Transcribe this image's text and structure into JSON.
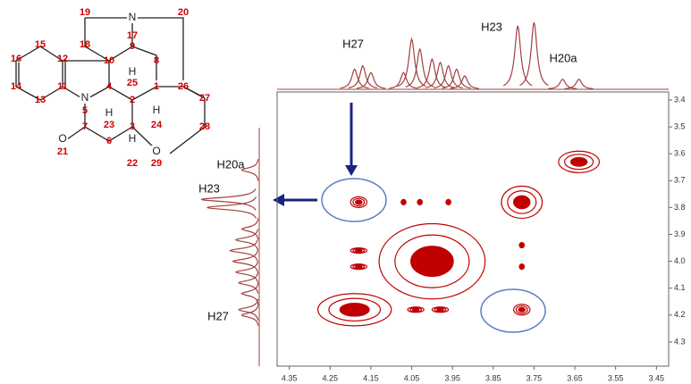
{
  "molecule": {
    "atoms": [
      "19",
      "17",
      "20",
      "15",
      "18",
      "9",
      "16",
      "12",
      "10",
      "8",
      "14",
      "11",
      "4",
      "25",
      "2",
      "1",
      "26",
      "27",
      "13",
      "5",
      "23",
      "24",
      "7",
      "6",
      "3",
      "28",
      "21",
      "22",
      "29"
    ],
    "heteroatoms": [
      "N",
      "N",
      "O",
      "O"
    ],
    "hydrogens": [
      "H",
      "H",
      "H",
      "H"
    ]
  },
  "spectrum": {
    "xlim": [
      4.38,
      3.42
    ],
    "ylim": [
      3.37,
      4.39
    ],
    "xticks": [
      4.35,
      4.25,
      4.15,
      4.05,
      3.95,
      3.85,
      3.75,
      3.65,
      3.55,
      3.45
    ],
    "yticks": [
      3.4,
      3.5,
      3.6,
      3.7,
      3.8,
      3.9,
      {
        "value": 4,
        "label": "4.0"
      },
      4.1,
      4.2,
      4.3
    ],
    "color": "#c00000",
    "top_labels": [
      "H27",
      "H23",
      "H20a"
    ],
    "left_labels": [
      "H20a",
      "H23",
      "H27"
    ],
    "top_projection": [
      {
        "x": 4.19,
        "h": 0.3
      },
      {
        "x": 4.17,
        "h": 0.35
      },
      {
        "x": 4.15,
        "h": 0.25
      },
      {
        "x": 4.07,
        "h": 0.25
      },
      {
        "x": 4.05,
        "h": 0.75
      },
      {
        "x": 4.03,
        "h": 0.6
      },
      {
        "x": 4.0,
        "h": 0.45
      },
      {
        "x": 3.98,
        "h": 0.4
      },
      {
        "x": 3.96,
        "h": 0.35
      },
      {
        "x": 3.94,
        "h": 0.3
      },
      {
        "x": 3.92,
        "h": 0.2
      },
      {
        "x": 3.79,
        "h": 0.95
      },
      {
        "x": 3.75,
        "h": 1
      },
      {
        "x": 3.68,
        "h": 0.15
      },
      {
        "x": 3.64,
        "h": 0.15
      }
    ],
    "left_projection": [
      {
        "y": 3.66,
        "h": 0.3
      },
      {
        "y": 3.77,
        "h": 1
      },
      {
        "y": 3.8,
        "h": 0.9
      },
      {
        "y": 3.88,
        "h": 0.3
      },
      {
        "y": 3.92,
        "h": 0.4
      },
      {
        "y": 3.96,
        "h": 0.5
      },
      {
        "y": 4.0,
        "h": 0.45
      },
      {
        "y": 4.04,
        "h": 0.4
      },
      {
        "y": 4.08,
        "h": 0.35
      },
      {
        "y": 4.12,
        "h": 0.3
      },
      {
        "y": 4.18,
        "h": 0.35
      },
      {
        "y": 4.2,
        "h": 0.3
      }
    ],
    "peaks": [
      {
        "x": 4.19,
        "y": 4.18,
        "w": 0.09,
        "h": 0.06
      },
      {
        "x": 4.0,
        "y": 4.0,
        "w": 0.13,
        "h": 0.14
      },
      {
        "x": 3.78,
        "y": 3.78,
        "w": 0.05,
        "h": 0.06
      },
      {
        "x": 3.64,
        "y": 3.63,
        "w": 0.05,
        "h": 0.04
      },
      {
        "x": 4.18,
        "y": 3.78,
        "w": 0.02,
        "h": 0.02
      },
      {
        "x": 3.78,
        "y": 4.18,
        "w": 0.02,
        "h": 0.02
      },
      {
        "x": 4.07,
        "y": 3.78,
        "w": 0.006,
        "h": 0.01
      },
      {
        "x": 4.03,
        "y": 3.78,
        "w": 0.006,
        "h": 0.01
      },
      {
        "x": 3.96,
        "y": 3.78,
        "w": 0.006,
        "h": 0.01
      },
      {
        "x": 4.18,
        "y": 3.96,
        "w": 0.02,
        "h": 0.01
      },
      {
        "x": 4.18,
        "y": 4.02,
        "w": 0.02,
        "h": 0.01
      },
      {
        "x": 3.98,
        "y": 4.18,
        "w": 0.02,
        "h": 0.01
      },
      {
        "x": 4.04,
        "y": 4.18,
        "w": 0.02,
        "h": 0.01
      },
      {
        "x": 3.78,
        "y": 3.94,
        "w": 0.006,
        "h": 0.01
      },
      {
        "x": 3.78,
        "y": 4.02,
        "w": 0.006,
        "h": 0.01
      }
    ]
  }
}
